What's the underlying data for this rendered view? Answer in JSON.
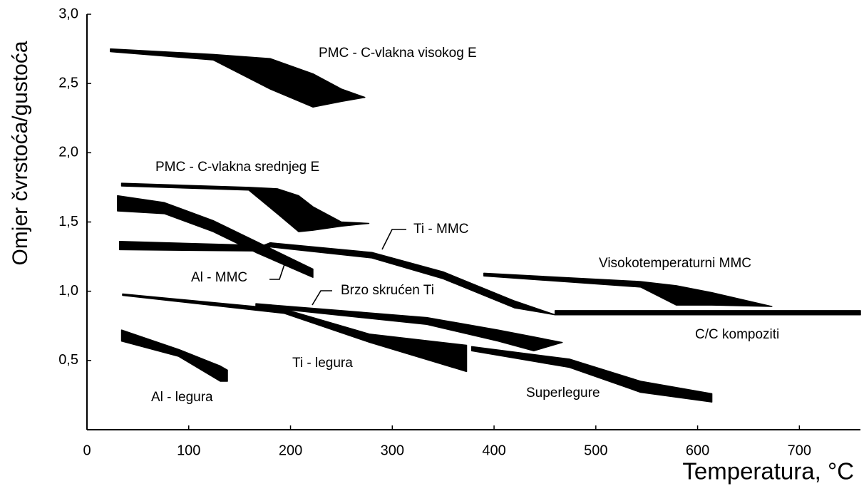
{
  "chart_data": {
    "type": "band",
    "xlabel": "Temperatura,  °C",
    "ylabel": "Omjer čvrstoća/gustoća",
    "xlim": [
      0,
      760
    ],
    "ylim": [
      0,
      3
    ],
    "xticks": [
      0,
      100,
      200,
      300,
      400,
      500,
      600,
      700
    ],
    "yticks": [
      {
        "value": 0.5,
        "label": "0,5"
      },
      {
        "value": 1,
        "label": "1,0"
      },
      {
        "value": 1.5,
        "label": "1,5"
      },
      {
        "value": 2,
        "label": "2,0"
      },
      {
        "value": 2.5,
        "label": "2,5"
      },
      {
        "value": 3,
        "label": "3,0"
      }
    ],
    "color": "#000000",
    "series": [
      {
        "name": "PMC - C-vlakna visokog E",
        "x": [
          23,
          124,
          180,
          222,
          250,
          273
        ],
        "upper": [
          2.75,
          2.71,
          2.68,
          2.57,
          2.46,
          2.4
        ],
        "lower": [
          2.73,
          2.67,
          2.46,
          2.33,
          2.37,
          2.4
        ]
      },
      {
        "name": "PMC - C-vlakna srednjeg E",
        "x": [
          34,
          159,
          187,
          208,
          222,
          250,
          277
        ],
        "upper": [
          1.78,
          1.75,
          1.74,
          1.69,
          1.61,
          1.5,
          1.49
        ],
        "lower": [
          1.76,
          1.73,
          1.56,
          1.43,
          1.44,
          1.47,
          1.49
        ]
      },
      {
        "name": "Al - MMC",
        "x": [
          30,
          76,
          124,
          166,
          222
        ],
        "upper": [
          1.69,
          1.64,
          1.51,
          1.36,
          1.16
        ],
        "lower": [
          1.58,
          1.56,
          1.43,
          1.28,
          1.1
        ]
      },
      {
        "name": "Ti - MMC",
        "x": [
          32,
          173,
          180,
          280,
          350,
          420,
          460
        ],
        "upper": [
          1.36,
          1.33,
          1.35,
          1.28,
          1.14,
          0.93,
          0.83
        ],
        "lower": [
          1.3,
          1.29,
          1.32,
          1.24,
          1.09,
          0.88,
          0.83
        ]
      },
      {
        "name": "Visokotemperaturni MMC",
        "x": [
          390,
          544,
          579,
          614,
          673
        ],
        "upper": [
          1.13,
          1.07,
          1.04,
          0.99,
          0.89
        ],
        "lower": [
          1.11,
          1.03,
          0.9,
          0.9,
          0.89
        ]
      },
      {
        "name": "C/C kompoziti",
        "x": [
          460,
          760
        ],
        "upper": [
          0.86,
          0.86
        ],
        "lower": [
          0.83,
          0.83
        ]
      },
      {
        "name": "Brzo skrućen Ti",
        "x": [
          166,
          334,
          404,
          439,
          467
        ],
        "upper": [
          0.91,
          0.81,
          0.72,
          0.67,
          0.63
        ],
        "lower": [
          0.89,
          0.76,
          0.64,
          0.57,
          0.63
        ]
      },
      {
        "name": "Ti - legura",
        "x": [
          35,
          194,
          278,
          373
        ],
        "upper": [
          0.98,
          0.87,
          0.69,
          0.61
        ],
        "lower": [
          0.97,
          0.84,
          0.63,
          0.42
        ]
      },
      {
        "name": "Superlegure",
        "x": [
          378,
          474,
          544,
          614
        ],
        "upper": [
          0.6,
          0.51,
          0.35,
          0.26
        ],
        "lower": [
          0.57,
          0.45,
          0.27,
          0.2
        ]
      },
      {
        "name": "Al - legura",
        "x": [
          34,
          90,
          131,
          138
        ],
        "upper": [
          0.72,
          0.58,
          0.46,
          0.43
        ],
        "lower": [
          0.64,
          0.53,
          0.35,
          0.35
        ]
      }
    ]
  }
}
